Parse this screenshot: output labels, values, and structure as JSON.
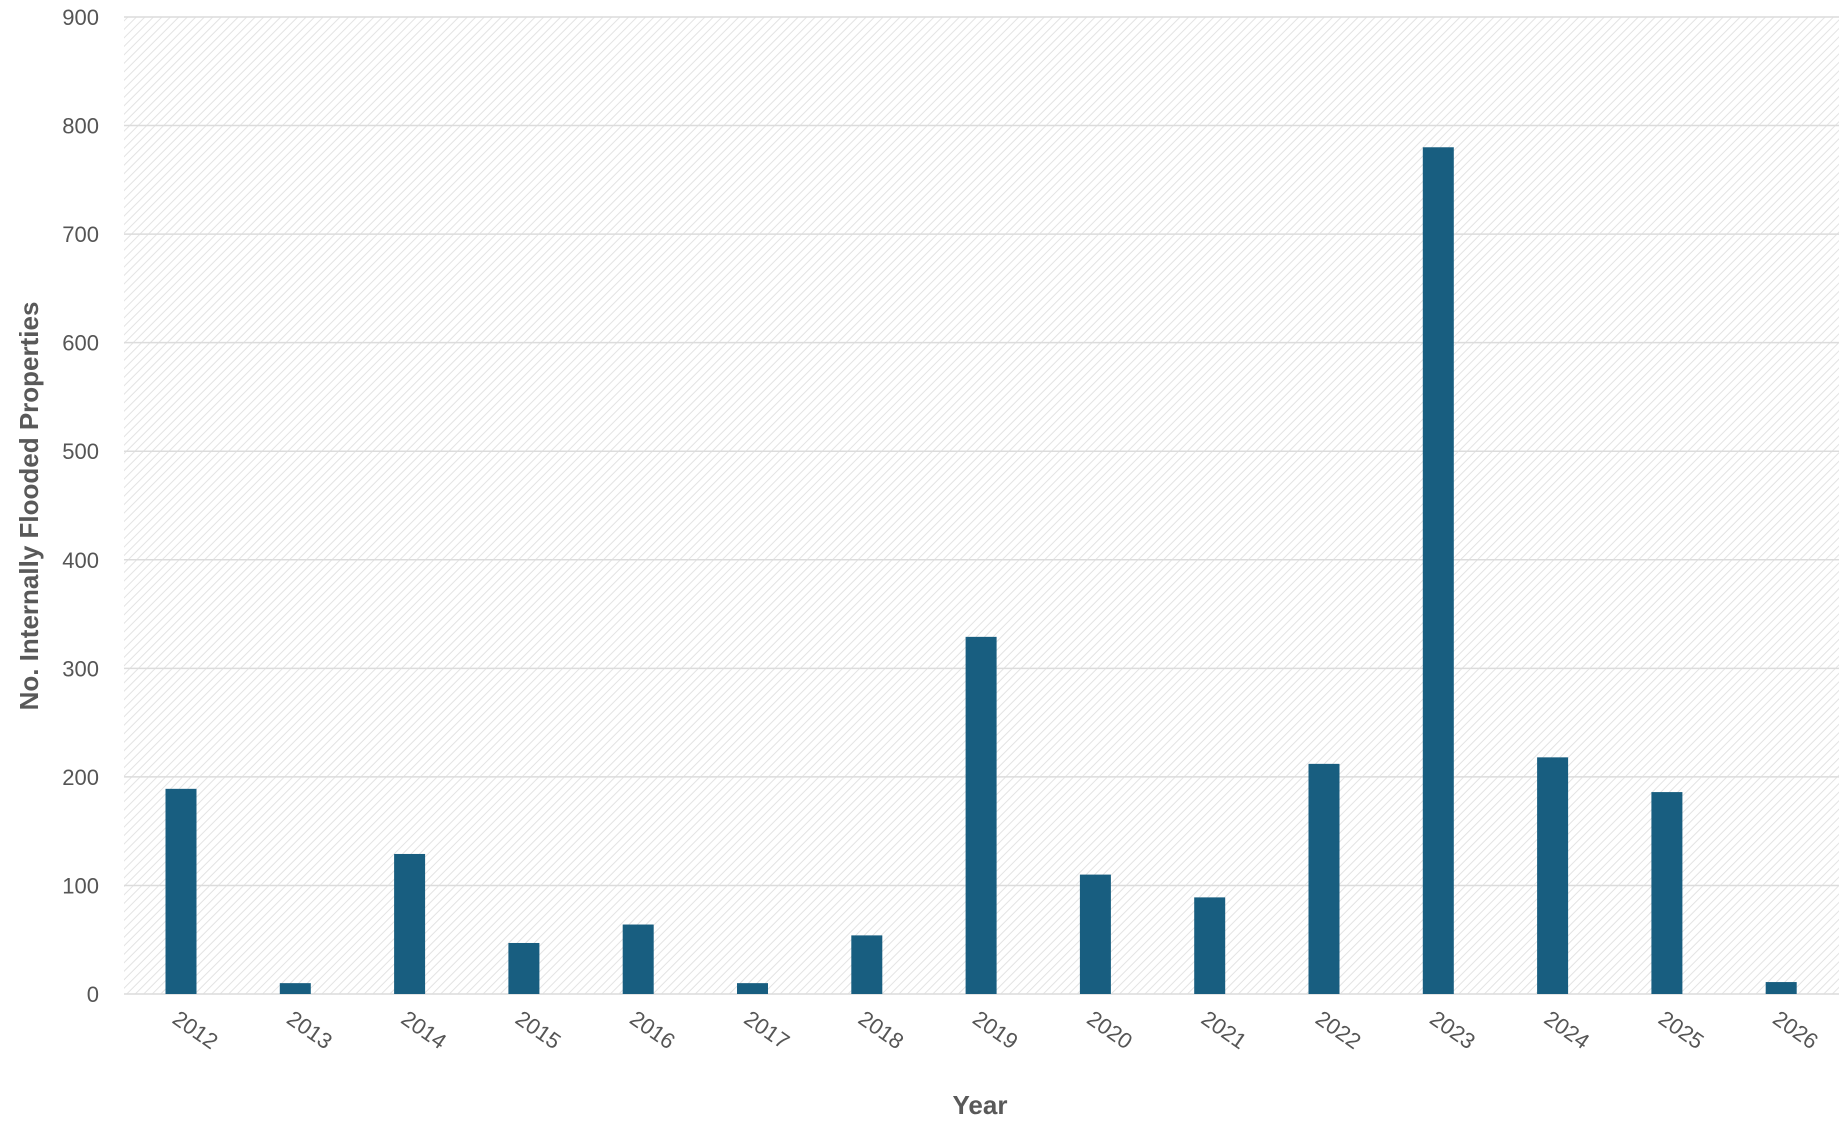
{
  "chart_data": {
    "type": "bar",
    "title": "",
    "xlabel": "Year",
    "ylabel": "No. Internally Flooded Properties",
    "categories": [
      "2012",
      "2013",
      "2014",
      "2015",
      "2016",
      "2017",
      "2018",
      "2019",
      "2020",
      "2021",
      "2022",
      "2023",
      "2024",
      "2025",
      "2026"
    ],
    "values": [
      189,
      10,
      129,
      47,
      64,
      10,
      54,
      329,
      110,
      89,
      212,
      780,
      218,
      186,
      11
    ],
    "ylim": [
      0,
      900
    ],
    "yticks": [
      "0",
      "100",
      "200",
      "300",
      "400",
      "500",
      "600",
      "700",
      "800",
      "900"
    ],
    "grid": true,
    "legend": "none",
    "colors": {
      "bar": "#185e80",
      "plot_background_hatch": "#e3e3e3"
    }
  }
}
